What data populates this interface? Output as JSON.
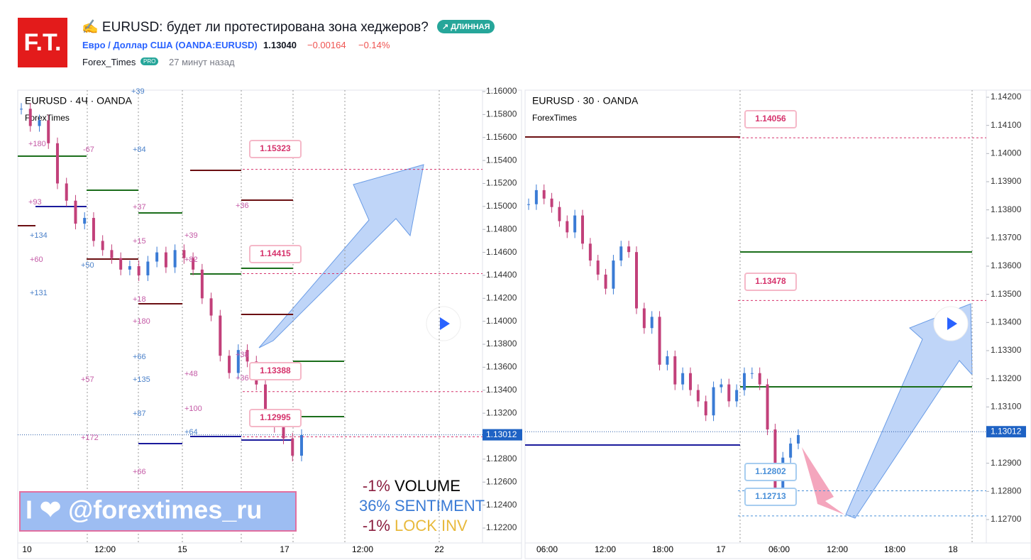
{
  "header": {
    "logo": "F.T.",
    "title": "✍ EURUSD: будет ли протестирована зона хеджеров?",
    "badge": "↗ ДЛИННАЯ",
    "symbol": "Евро / Доллар США (OANDA:EURUSD)",
    "price": "1.13040",
    "change": "−0.00164",
    "change_pct": "−0.14%",
    "author": "Forex_Times",
    "author_badge": "PRO",
    "time": "27 минут назад"
  },
  "left": {
    "title": "EURUSD · 4Ч · OANDA",
    "subtitle": "ForexTimes",
    "ylim": [
      1.122,
      1.16
    ],
    "yticks": [
      {
        "value": 1.16,
        "label": "1.16000"
      },
      {
        "value": 1.158,
        "label": "1.15800"
      },
      {
        "value": 1.156,
        "label": "1.15600"
      },
      {
        "value": 1.154,
        "label": "1.15400"
      },
      {
        "value": 1.152,
        "label": "1.15200"
      },
      {
        "value": 1.15,
        "label": "1.15000"
      },
      {
        "value": 1.148,
        "label": "1.14800"
      },
      {
        "value": 1.146,
        "label": "1.14600"
      },
      {
        "value": 1.144,
        "label": "1.14400"
      },
      {
        "value": 1.142,
        "label": "1.14200"
      },
      {
        "value": 1.14,
        "label": "1.14000"
      },
      {
        "value": 1.138,
        "label": "1.13800"
      },
      {
        "value": 1.136,
        "label": "1.13600"
      },
      {
        "value": 1.134,
        "label": "1.13400"
      },
      {
        "value": 1.132,
        "label": "1.13200"
      },
      {
        "value": 1.13,
        "label": "1.13000"
      },
      {
        "value": 1.128,
        "label": "1.12800"
      },
      {
        "value": 1.126,
        "label": "1.12600"
      },
      {
        "value": 1.124,
        "label": "1.12400"
      },
      {
        "value": 1.122,
        "label": "1.12200"
      }
    ],
    "xlabels": [
      "10",
      "12:00",
      "15",
      "17",
      "12:00",
      "22"
    ],
    "closes": [
      1.1585,
      1.157,
      1.1575,
      1.1555,
      1.152,
      1.1505,
      1.1485,
      1.149,
      1.147,
      1.1462,
      1.1455,
      1.1445,
      1.1448,
      1.144,
      1.1452,
      1.146,
      1.1447,
      1.1462,
      1.1455,
      1.1445,
      1.142,
      1.1405,
      1.137,
      1.1355,
      1.1375,
      1.1365,
      1.1345,
      1.1315,
      1.1308,
      1.1298,
      1.1283,
      1.1301
    ],
    "callouts": [
      1.15323,
      1.14415,
      1.13388,
      1.12995
    ],
    "current": {
      "value": 1.13012,
      "label": "1.13012"
    },
    "marks": [
      "+39",
      "+180",
      "-67",
      "+84",
      "+93",
      "+37",
      "+134",
      "+15",
      "+60",
      "+50",
      "+39",
      "+82",
      "+131",
      "+18",
      "+180",
      "+66",
      "+38",
      "+57",
      "+135",
      "+48",
      "+36",
      "+87",
      "+100",
      "+172",
      "+64",
      "+66",
      "+36"
    ],
    "banner": "I ❤ @forextimes_ru",
    "stats": [
      {
        "pct": "-1%",
        "name": "VOLUME"
      },
      {
        "pct": "36%",
        "name": "SENTIMENT"
      },
      {
        "pct": "-1%",
        "name": "LOCK INV"
      }
    ]
  },
  "right": {
    "title": "EURUSD · 30 · OANDA",
    "subtitle": "ForexTimes",
    "ylim": [
      1.127,
      1.142
    ],
    "yticks": [
      {
        "value": 1.142,
        "label": "1.14200"
      },
      {
        "value": 1.141,
        "label": "1.14100"
      },
      {
        "value": 1.14,
        "label": "1.14000"
      },
      {
        "value": 1.139,
        "label": "1.13900"
      },
      {
        "value": 1.138,
        "label": "1.13800"
      },
      {
        "value": 1.137,
        "label": "1.13700"
      },
      {
        "value": 1.136,
        "label": "1.13600"
      },
      {
        "value": 1.135,
        "label": "1.13500"
      },
      {
        "value": 1.134,
        "label": "1.13400"
      },
      {
        "value": 1.133,
        "label": "1.13300"
      },
      {
        "value": 1.132,
        "label": "1.13200"
      },
      {
        "value": 1.131,
        "label": "1.13100"
      },
      {
        "value": 1.129,
        "label": "1.12900"
      },
      {
        "value": 1.128,
        "label": "1.12800"
      },
      {
        "value": 1.127,
        "label": "1.12700"
      }
    ],
    "xlabels": [
      "06:00",
      "12:00",
      "18:00",
      "17",
      "06:00",
      "12:00",
      "18:00",
      "18"
    ],
    "closes": [
      1.1382,
      1.1387,
      1.1384,
      1.1381,
      1.1376,
      1.1372,
      1.1378,
      1.1368,
      1.1362,
      1.1357,
      1.1352,
      1.1362,
      1.1367,
      1.1365,
      1.1345,
      1.1338,
      1.1342,
      1.1325,
      1.1328,
      1.1318,
      1.1322,
      1.1316,
      1.1312,
      1.1307,
      1.1317,
      1.1318,
      1.1312,
      1.1316,
      1.1322,
      1.1322,
      1.1318,
      1.1302,
      1.1281,
      1.1292,
      1.1297,
      1.13
    ],
    "callouts": [
      1.14056,
      1.13478,
      1.12802,
      1.12713
    ],
    "current": {
      "value": 1.13012,
      "label": "1.13012"
    }
  }
}
